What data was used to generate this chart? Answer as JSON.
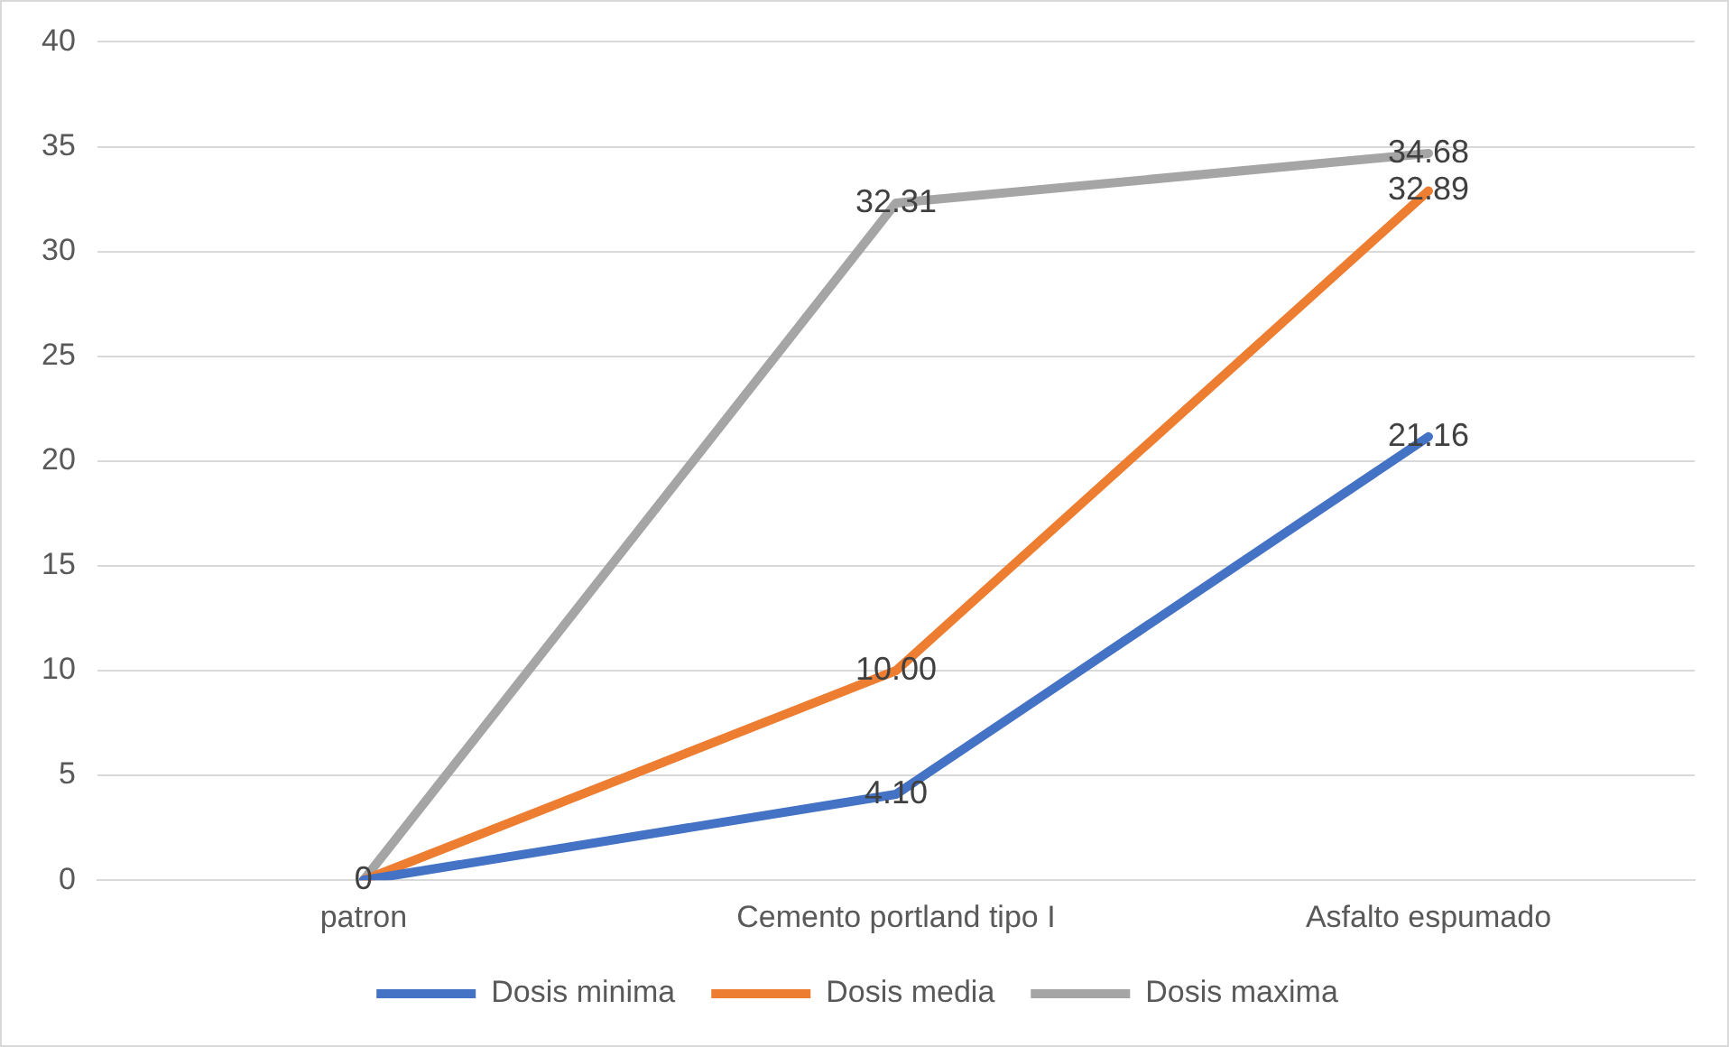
{
  "chart_data": {
    "type": "line",
    "categories": [
      "patron",
      "Cemento portland tipo I",
      "Asfalto espumado"
    ],
    "series": [
      {
        "name": "Dosis minima",
        "color": "#4472c4",
        "values": [
          0,
          4.1,
          21.16
        ],
        "value_labels": [
          null,
          "4.10",
          "21.16"
        ]
      },
      {
        "name": "Dosis media",
        "color": "#ed7d31",
        "values": [
          0,
          10.0,
          32.89
        ],
        "value_labels": [
          null,
          "10.00",
          "32.89"
        ]
      },
      {
        "name": "Dosis maxima",
        "color": "#a5a5a5",
        "values": [
          0,
          32.31,
          34.68
        ],
        "value_labels": [
          "0",
          "32.31",
          "34.68"
        ]
      }
    ],
    "ylim": [
      0,
      40
    ],
    "yticks": [
      0,
      5,
      10,
      15,
      20,
      25,
      30,
      35,
      40
    ],
    "grid": "y",
    "legend": "bottom",
    "marker": "none",
    "line_style": "solid"
  }
}
